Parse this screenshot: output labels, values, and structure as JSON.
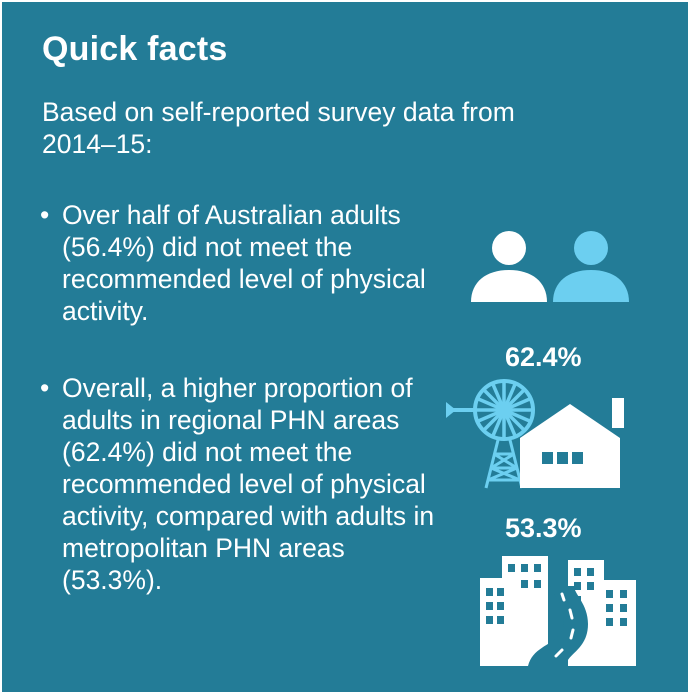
{
  "title": "Quick facts",
  "intro": "Based on self-reported survey data from 2014–15:",
  "bullets": [
    {
      "dot": "•",
      "text": "Over half of Australian adults (56.4%) did not meet the recommended level of physical activity."
    },
    {
      "dot": "•",
      "text": "Overall, a higher proportion of adults in regional PHN areas (62.4%) did not meet the recommended level of physical activity, compared with adults in metropolitan PHN areas (53.3%)."
    }
  ],
  "stats": {
    "regional": "62.4%",
    "metropolitan": "53.3%"
  },
  "icons": {
    "people": "person-pair-icon",
    "regional": "windmill-house-icon",
    "metro": "city-buildings-road-icon"
  },
  "colors": {
    "background": "#237c97",
    "text": "#ffffff",
    "accent_light_blue": "#6ccff0"
  }
}
